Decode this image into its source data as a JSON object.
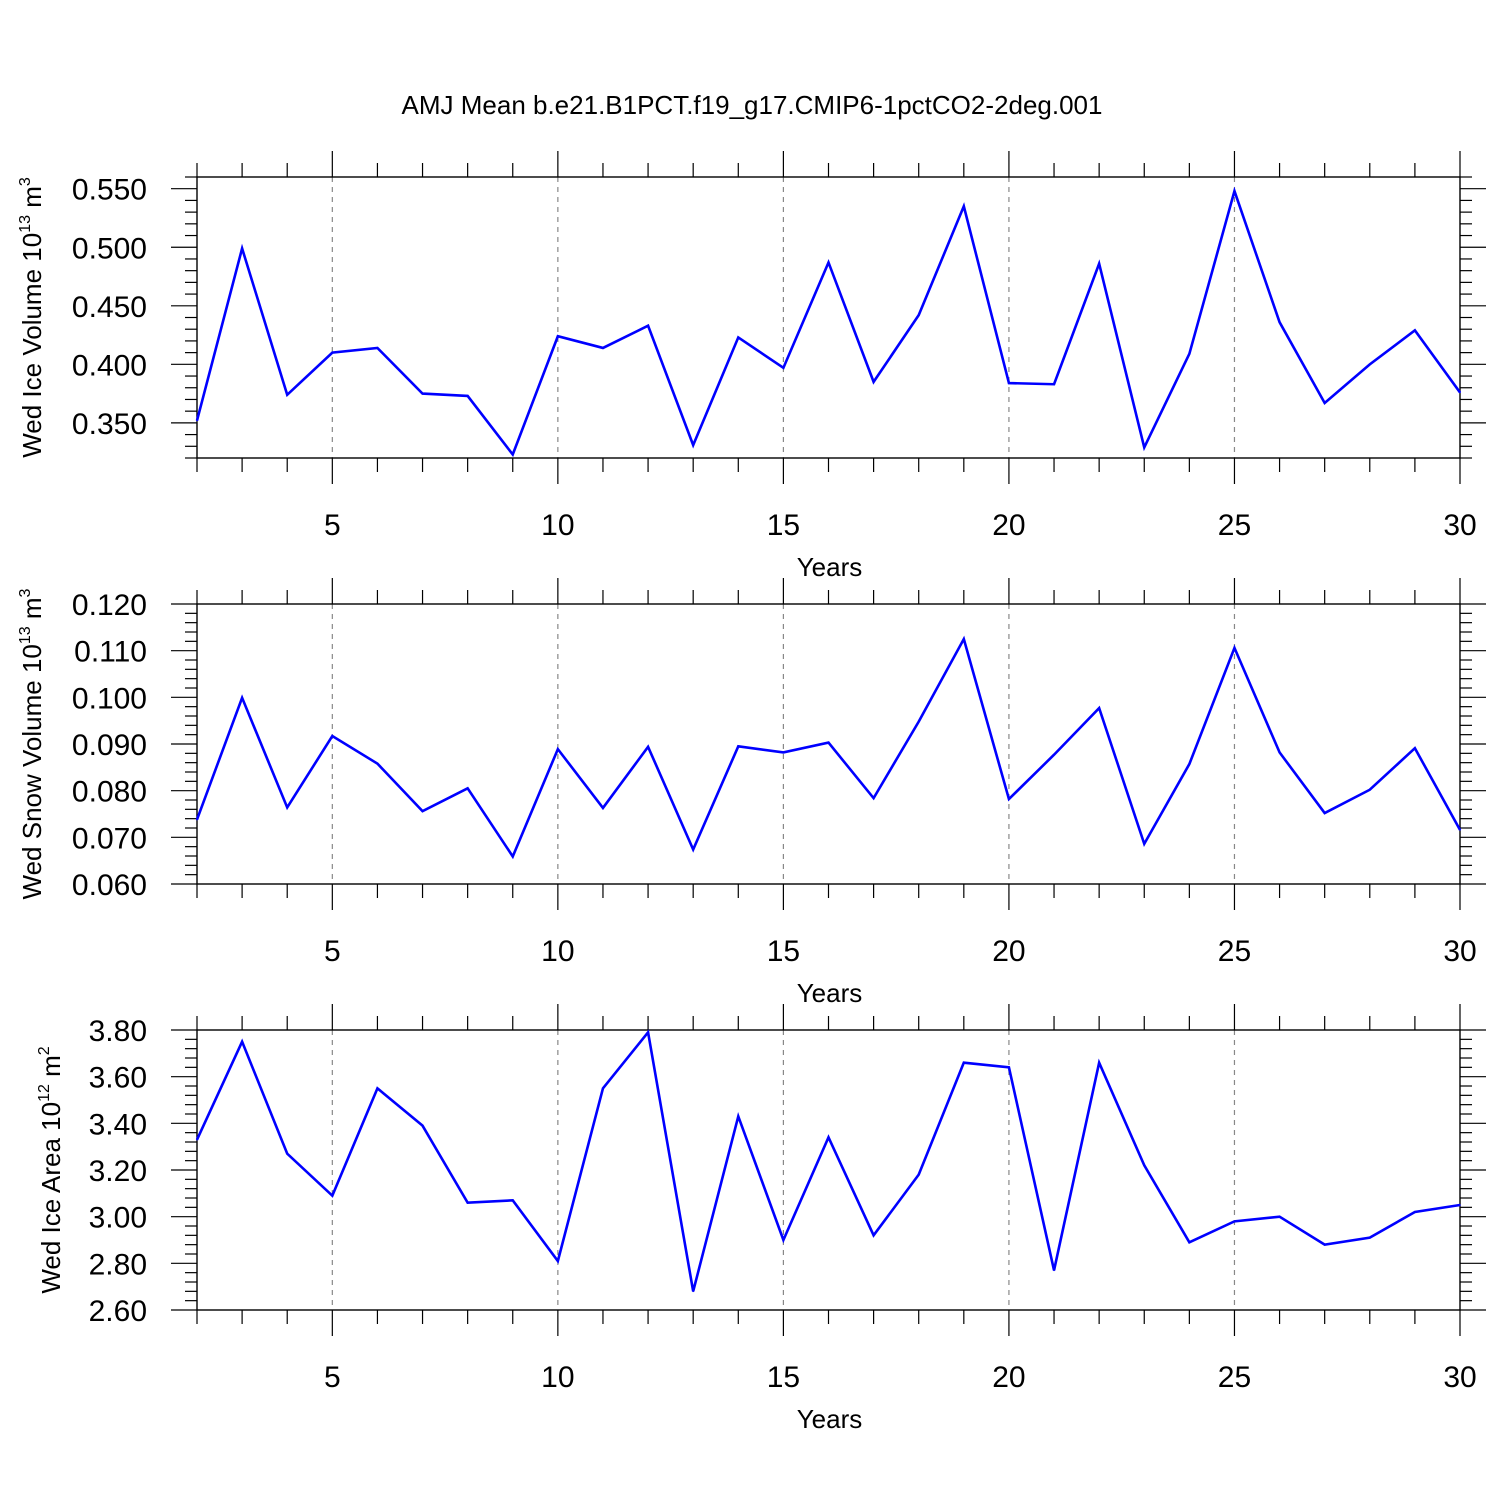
{
  "title": "AMJ Mean b.e21.B1PCT.f19_g17.CMIP6-1pctCO2-2deg.001",
  "colors": {
    "line": "#0000ff",
    "axis": "#000000",
    "grid": "#888888",
    "background": "#ffffff"
  },
  "chart_data": [
    {
      "type": "line",
      "ylabel": {
        "prefix": "Wed Ice Volume 10",
        "exponent": "13",
        "unit": " m",
        "unit_exponent": "3"
      },
      "xlabel": "Years",
      "xlim": [
        2,
        30
      ],
      "ylim": [
        0.32,
        0.56
      ],
      "xticks": [
        5,
        10,
        15,
        20,
        25,
        30
      ],
      "xtick_labels": [
        "5",
        "10",
        "15",
        "20",
        "25",
        "30"
      ],
      "yticks": [
        0.35,
        0.4,
        0.45,
        0.5,
        0.55
      ],
      "ytick_labels": [
        "0.350",
        "0.400",
        "0.450",
        "0.500",
        "0.550"
      ],
      "gridlines_x": [
        5,
        10,
        15,
        20,
        25
      ],
      "x": [
        2,
        3,
        4,
        5,
        6,
        7,
        8,
        9,
        10,
        11,
        12,
        13,
        14,
        15,
        16,
        17,
        18,
        19,
        20,
        21,
        22,
        23,
        24,
        25,
        26,
        27,
        28,
        29,
        30
      ],
      "series": [
        {
          "name": "Wed Ice Volume",
          "values": [
            0.352,
            0.499,
            0.374,
            0.41,
            0.414,
            0.375,
            0.373,
            0.323,
            0.424,
            0.414,
            0.433,
            0.331,
            0.423,
            0.397,
            0.487,
            0.385,
            0.442,
            0.535,
            0.384,
            0.383,
            0.486,
            0.329,
            0.409,
            0.548,
            0.436,
            0.367,
            0.4,
            0.429,
            0.376
          ]
        }
      ]
    },
    {
      "type": "line",
      "ylabel": {
        "prefix": "Wed Snow Volume 10",
        "exponent": "13",
        "unit": " m",
        "unit_exponent": "3"
      },
      "xlabel": "Years",
      "xlim": [
        2,
        30
      ],
      "ylim": [
        0.06,
        0.12
      ],
      "xticks": [
        5,
        10,
        15,
        20,
        25,
        30
      ],
      "xtick_labels": [
        "5",
        "10",
        "15",
        "20",
        "25",
        "30"
      ],
      "yticks": [
        0.06,
        0.07,
        0.08,
        0.09,
        0.1,
        0.11,
        0.12
      ],
      "ytick_labels": [
        "0.060",
        "0.070",
        "0.080",
        "0.090",
        "0.100",
        "0.110",
        "0.120"
      ],
      "gridlines_x": [
        5,
        10,
        15,
        20,
        25
      ],
      "x": [
        2,
        3,
        4,
        5,
        6,
        7,
        8,
        9,
        10,
        11,
        12,
        13,
        14,
        15,
        16,
        17,
        18,
        19,
        20,
        21,
        22,
        23,
        24,
        25,
        26,
        27,
        28,
        29,
        30
      ],
      "series": [
        {
          "name": "Wed Snow Volume",
          "values": [
            0.0738,
            0.0999,
            0.0764,
            0.0917,
            0.0858,
            0.0756,
            0.0805,
            0.0659,
            0.0889,
            0.0763,
            0.0894,
            0.0674,
            0.0895,
            0.0882,
            0.0903,
            0.0784,
            0.0948,
            0.1125,
            0.0782,
            0.0877,
            0.0977,
            0.0686,
            0.0857,
            0.1106,
            0.0882,
            0.0752,
            0.0802,
            0.0891,
            0.0716
          ]
        }
      ]
    },
    {
      "type": "line",
      "ylabel": {
        "prefix": "Wed Ice Area 10",
        "exponent": "12",
        "unit": " m",
        "unit_exponent": "2"
      },
      "xlabel": "Years",
      "xlim": [
        2,
        30
      ],
      "ylim": [
        2.6,
        3.8
      ],
      "xticks": [
        5,
        10,
        15,
        20,
        25,
        30
      ],
      "xtick_labels": [
        "5",
        "10",
        "15",
        "20",
        "25",
        "30"
      ],
      "yticks": [
        2.6,
        2.8,
        3.0,
        3.2,
        3.4,
        3.6,
        3.8
      ],
      "ytick_labels": [
        "2.60",
        "2.80",
        "3.00",
        "3.20",
        "3.40",
        "3.60",
        "3.80"
      ],
      "gridlines_x": [
        5,
        10,
        15,
        20,
        25
      ],
      "x": [
        2,
        3,
        4,
        5,
        6,
        7,
        8,
        9,
        10,
        11,
        12,
        13,
        14,
        15,
        16,
        17,
        18,
        19,
        20,
        21,
        22,
        23,
        24,
        25,
        26,
        27,
        28,
        29,
        30
      ],
      "series": [
        {
          "name": "Wed Ice Area",
          "values": [
            3.33,
            3.75,
            3.27,
            3.09,
            3.55,
            3.39,
            3.06,
            3.07,
            2.81,
            3.55,
            3.79,
            2.68,
            3.43,
            2.9,
            3.34,
            2.92,
            3.18,
            3.66,
            3.64,
            2.77,
            3.66,
            3.22,
            2.89,
            2.98,
            3.0,
            2.88,
            2.91,
            3.02,
            3.05
          ]
        }
      ]
    }
  ]
}
